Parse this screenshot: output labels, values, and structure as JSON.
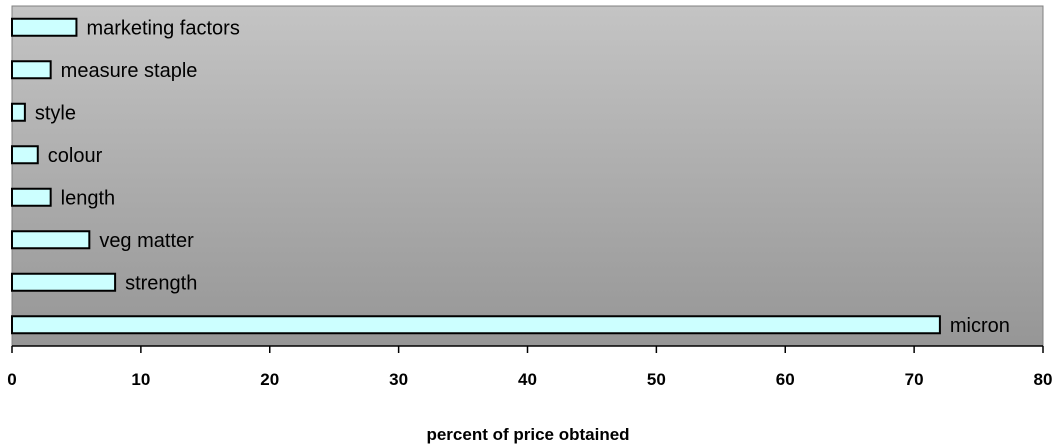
{
  "chart_data": {
    "type": "bar",
    "orientation": "horizontal",
    "categories": [
      "marketing factors",
      "measure staple",
      "style",
      "colour",
      "length",
      "veg matter",
      "strength",
      "micron"
    ],
    "values": [
      5,
      3,
      1,
      2,
      3,
      6,
      8,
      72
    ],
    "xlabel": "percent of price obtained",
    "ylabel": "",
    "xlim": [
      0,
      80
    ],
    "xticks": [
      0,
      10,
      20,
      30,
      40,
      50,
      60,
      70,
      80
    ],
    "grid": false,
    "legend": "none",
    "colors": {
      "bar_fill": "#ccffff",
      "bar_stroke": "#000000",
      "plot_bg_top": "#c4c4c4",
      "plot_bg_bottom": "#969696"
    }
  }
}
